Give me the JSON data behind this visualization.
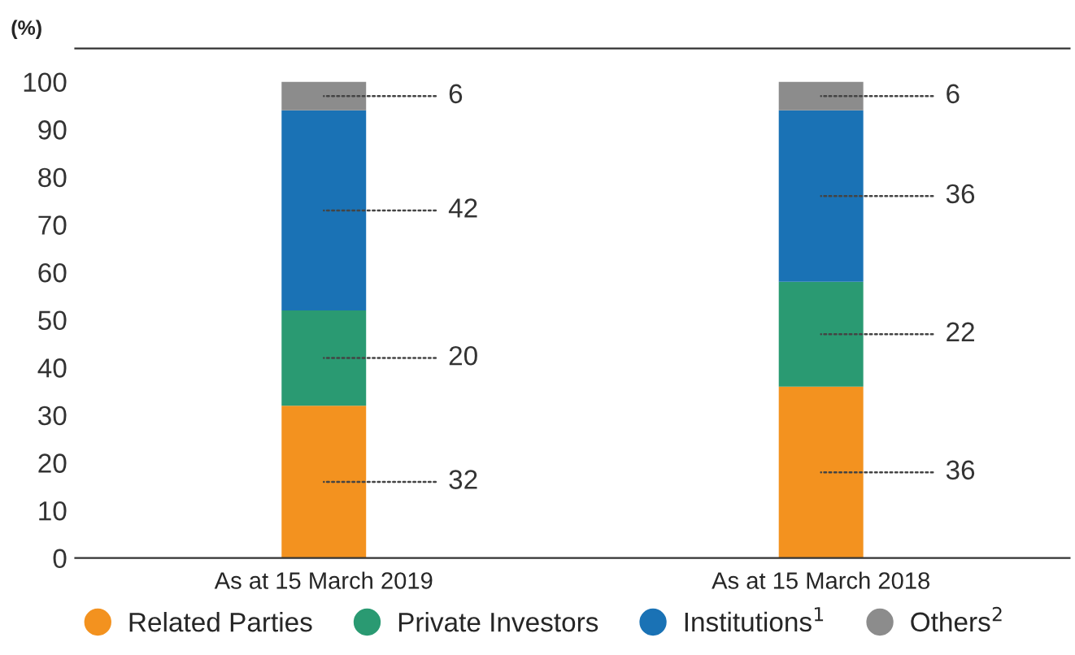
{
  "chart_data": {
    "type": "bar",
    "stacked": true,
    "ylabel": "(%)",
    "categories": [
      "As at 15 March 2019",
      "As at 15 March 2018"
    ],
    "series": [
      {
        "name": "Related Parties",
        "color": "#f3921f",
        "values": [
          32,
          36
        ]
      },
      {
        "name": "Private Investors",
        "color": "#2a9a72",
        "values": [
          20,
          22
        ]
      },
      {
        "name": "Institutions$^{1}$",
        "color": "#1a72b5",
        "values": [
          42,
          36
        ]
      },
      {
        "name": "Others$^{2}$",
        "color": "#8c8c8c",
        "values": [
          6,
          6
        ]
      }
    ],
    "ylim": [
      0,
      107
    ],
    "yticks": [
      0,
      10,
      20,
      30,
      40,
      50,
      60,
      70,
      80,
      90,
      100
    ],
    "data_labels": true,
    "legend": "bottom",
    "marker": "circle",
    "grid": false
  }
}
